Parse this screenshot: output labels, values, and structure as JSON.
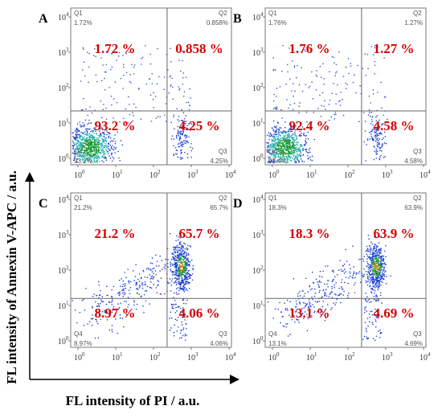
{
  "axis_labels": {
    "y": "FL intensity of Annexin V-APC / a.u.",
    "x": "FL intensity of PI / a.u."
  },
  "tick_base": "10",
  "tick_exponents": [
    "0",
    "1",
    "2",
    "3",
    "4"
  ],
  "panels": [
    {
      "letter": "A",
      "quadrants": [
        {
          "name": "Q1",
          "gate": "1.72%",
          "big": "1.72 %"
        },
        {
          "name": "Q2",
          "gate": "0.858%",
          "big": "0.858 %"
        },
        {
          "name": "Q4",
          "gate": "93.2%",
          "big": "93.2 %"
        },
        {
          "name": "Q3",
          "gate": "4.25%",
          "big": "4.25 %"
        }
      ]
    },
    {
      "letter": "B",
      "quadrants": [
        {
          "name": "Q1",
          "gate": "1.76%",
          "big": "1.76 %"
        },
        {
          "name": "Q2",
          "gate": "1.27%",
          "big": "1.27 %"
        },
        {
          "name": "Q4",
          "gate": "92.4%",
          "big": "92.4 %"
        },
        {
          "name": "Q3",
          "gate": "4.58%",
          "big": "4.58 %"
        }
      ]
    },
    {
      "letter": "C",
      "quadrants": [
        {
          "name": "Q1",
          "gate": "21.2%",
          "big": "21.2 %"
        },
        {
          "name": "Q2",
          "gate": "65.7%",
          "big": "65.7 %"
        },
        {
          "name": "Q4",
          "gate": "8.97%",
          "big": "8.97 %"
        },
        {
          "name": "Q3",
          "gate": "4.06%",
          "big": "4.06 %"
        }
      ]
    },
    {
      "letter": "D",
      "quadrants": [
        {
          "name": "Q1",
          "gate": "18.3%",
          "big": "18.3 %"
        },
        {
          "name": "Q2",
          "gate": "63.9%",
          "big": "63.9 %"
        },
        {
          "name": "Q4",
          "gate": "13.1%",
          "big": "13.1 %"
        },
        {
          "name": "Q3",
          "gate": "4.69%",
          "big": "4.69 %"
        }
      ]
    }
  ]
}
